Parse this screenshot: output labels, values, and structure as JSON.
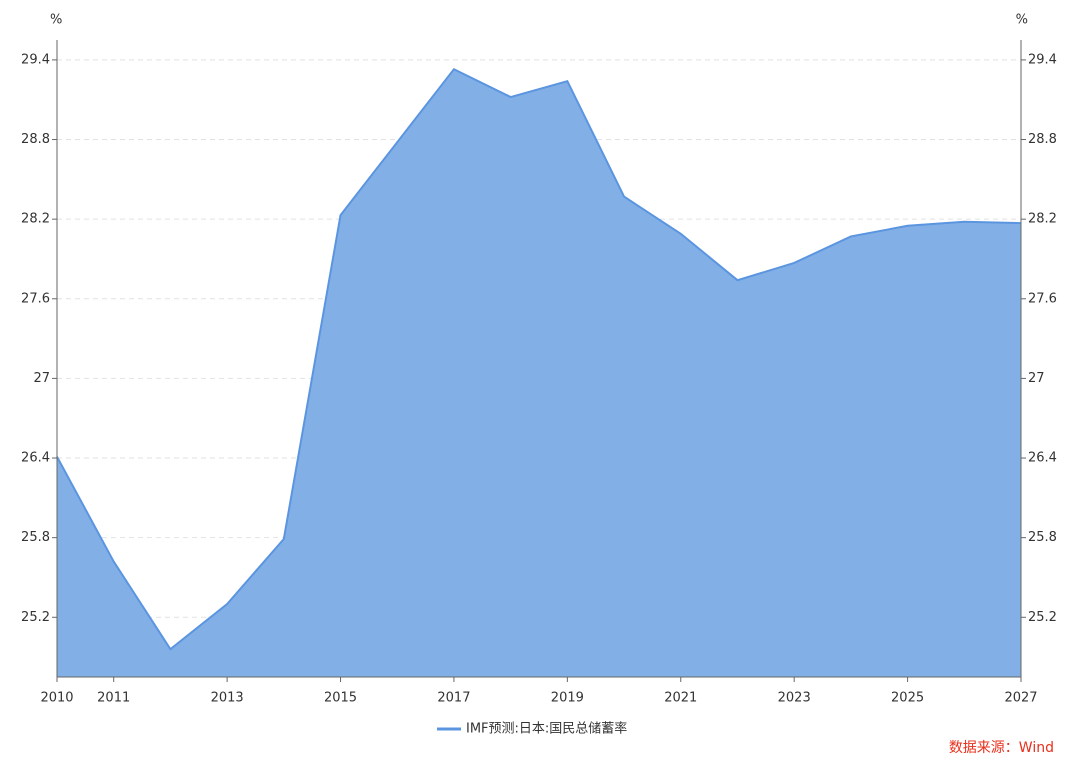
{
  "chart_data": {
    "type": "area",
    "y_unit": "%",
    "y2_unit": "%",
    "x": [
      2010,
      2011,
      2012,
      2013,
      2014,
      2015,
      2016,
      2017,
      2018,
      2019,
      2020,
      2021,
      2022,
      2023,
      2024,
      2025,
      2026,
      2027
    ],
    "series": [
      {
        "name": "IMF预测:日本:国民总储蓄率",
        "color": "#5b95e0",
        "fill": "#82b0e6",
        "values": [
          26.41,
          25.62,
          24.96,
          25.3,
          25.79,
          28.23,
          28.78,
          29.33,
          29.12,
          29.24,
          28.37,
          28.09,
          27.74,
          27.87,
          28.07,
          28.15,
          28.18,
          28.17
        ]
      }
    ],
    "xlim": [
      2010,
      2027
    ],
    "xticks": [
      2010,
      2011,
      2013,
      2015,
      2017,
      2019,
      2021,
      2023,
      2025,
      2027
    ],
    "ylim": [
      24.75,
      29.55
    ],
    "yticks": [
      25.2,
      25.8,
      26.4,
      27,
      27.6,
      28.2,
      28.8,
      29.4
    ],
    "y2lim": [
      24.75,
      29.55
    ],
    "y2ticks": [
      25.2,
      25.8,
      26.4,
      27,
      27.6,
      28.2,
      28.8,
      29.4
    ],
    "grid": true,
    "legend": "bottom",
    "source": "数据来源：Wind"
  }
}
